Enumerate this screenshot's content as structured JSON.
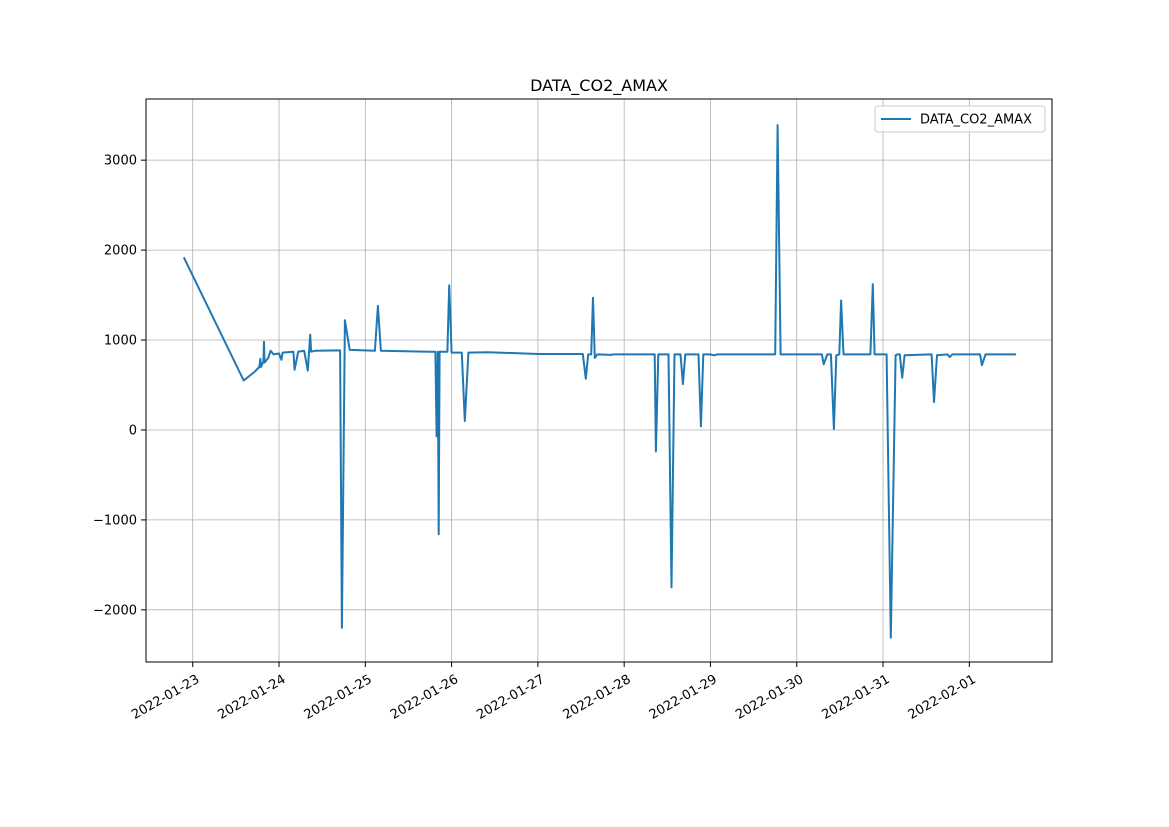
{
  "chart_data": {
    "type": "line",
    "title": "DATA_CO2_AMAX",
    "xlabel": "",
    "ylabel": "",
    "x_is_date": true,
    "xlim": [
      "2022-01-22T11:00",
      "2022-02-01T23:00"
    ],
    "ylim": [
      -2580,
      3680
    ],
    "grid": true,
    "legend_position": "upper-right",
    "x_ticks": [
      "2022-01-23",
      "2022-01-24",
      "2022-01-25",
      "2022-01-26",
      "2022-01-27",
      "2022-01-28",
      "2022-01-29",
      "2022-01-30",
      "2022-01-31",
      "2022-02-01"
    ],
    "y_ticks": [
      -2000,
      -1000,
      0,
      1000,
      2000,
      3000
    ],
    "y_tick_labels": [
      "−2000",
      "−1000",
      "0",
      "1000",
      "2000",
      "3000"
    ],
    "series": [
      {
        "name": "DATA_CO2_AMAX",
        "color": "#1f77b4",
        "points": [
          [
            "2022-01-22T21:30",
            1920
          ],
          [
            "2022-01-23T14:10",
            550
          ],
          [
            "2022-01-23T17:00",
            640
          ],
          [
            "2022-01-23T18:30",
            700
          ],
          [
            "2022-01-23T18:50",
            790
          ],
          [
            "2022-01-23T19:00",
            700
          ],
          [
            "2022-01-23T19:40",
            760
          ],
          [
            "2022-01-23T19:50",
            980
          ],
          [
            "2022-01-23T20:00",
            750
          ],
          [
            "2022-01-23T21:00",
            800
          ],
          [
            "2022-01-23T21:40",
            880
          ],
          [
            "2022-01-23T22:30",
            840
          ],
          [
            "2022-01-24T00:00",
            850
          ],
          [
            "2022-01-24T00:40",
            780
          ],
          [
            "2022-01-24T01:00",
            860
          ],
          [
            "2022-01-24T04:00",
            870
          ],
          [
            "2022-01-24T04:20",
            670
          ],
          [
            "2022-01-24T05:20",
            870
          ],
          [
            "2022-01-24T07:00",
            880
          ],
          [
            "2022-01-24T08:00",
            660
          ],
          [
            "2022-01-24T08:40",
            1060
          ],
          [
            "2022-01-24T08:55",
            870
          ],
          [
            "2022-01-24T10:00",
            880
          ],
          [
            "2022-01-24T17:00",
            885
          ],
          [
            "2022-01-24T17:30",
            -2200
          ],
          [
            "2022-01-24T18:20",
            1220
          ],
          [
            "2022-01-24T19:40",
            890
          ],
          [
            "2022-01-25T02:40",
            880
          ],
          [
            "2022-01-25T03:30",
            1380
          ],
          [
            "2022-01-25T04:20",
            880
          ],
          [
            "2022-01-25T18:00",
            870
          ],
          [
            "2022-01-25T19:30",
            870
          ],
          [
            "2022-01-25T19:50",
            -70
          ],
          [
            "2022-01-25T20:10",
            870
          ],
          [
            "2022-01-25T20:25",
            -1160
          ],
          [
            "2022-01-25T20:40",
            870
          ],
          [
            "2022-01-25T22:50",
            870
          ],
          [
            "2022-01-25T23:20",
            1610
          ],
          [
            "2022-01-26T00:00",
            860
          ],
          [
            "2022-01-26T02:50",
            860
          ],
          [
            "2022-01-26T03:40",
            100
          ],
          [
            "2022-01-26T04:40",
            860
          ],
          [
            "2022-01-26T10:00",
            865
          ],
          [
            "2022-01-27T00:00",
            845
          ],
          [
            "2022-01-27T12:30",
            845
          ],
          [
            "2022-01-27T13:20",
            570
          ],
          [
            "2022-01-27T14:00",
            840
          ],
          [
            "2022-01-27T14:50",
            840
          ],
          [
            "2022-01-27T15:20",
            1470
          ],
          [
            "2022-01-27T15:50",
            800
          ],
          [
            "2022-01-27T16:30",
            840
          ],
          [
            "2022-01-27T20:30",
            835
          ],
          [
            "2022-01-27T21:00",
            840
          ],
          [
            "2022-01-28T08:30",
            840
          ],
          [
            "2022-01-28T08:50",
            -240
          ],
          [
            "2022-01-28T09:30",
            840
          ],
          [
            "2022-01-28T12:20",
            840
          ],
          [
            "2022-01-28T13:10",
            -1750
          ],
          [
            "2022-01-28T14:00",
            840
          ],
          [
            "2022-01-28T15:40",
            840
          ],
          [
            "2022-01-28T16:20",
            510
          ],
          [
            "2022-01-28T17:00",
            840
          ],
          [
            "2022-01-28T20:40",
            840
          ],
          [
            "2022-01-28T21:20",
            40
          ],
          [
            "2022-01-28T22:00",
            840
          ],
          [
            "2022-01-29T00:00",
            840
          ],
          [
            "2022-01-29T01:00",
            830
          ],
          [
            "2022-01-29T02:00",
            840
          ],
          [
            "2022-01-29T18:00",
            840
          ],
          [
            "2022-01-29T18:40",
            3390
          ],
          [
            "2022-01-29T19:30",
            840
          ],
          [
            "2022-01-30T07:00",
            840
          ],
          [
            "2022-01-30T07:30",
            730
          ],
          [
            "2022-01-30T08:30",
            840
          ],
          [
            "2022-01-30T09:30",
            840
          ],
          [
            "2022-01-30T10:20",
            10
          ],
          [
            "2022-01-30T11:00",
            830
          ],
          [
            "2022-01-30T11:50",
            840
          ],
          [
            "2022-01-30T12:20",
            1440
          ],
          [
            "2022-01-30T13:00",
            840
          ],
          [
            "2022-01-30T20:30",
            840
          ],
          [
            "2022-01-30T21:10",
            1620
          ],
          [
            "2022-01-30T21:40",
            840
          ],
          [
            "2022-01-31T01:00",
            840
          ],
          [
            "2022-01-31T02:10",
            -2310
          ],
          [
            "2022-01-31T03:30",
            830
          ],
          [
            "2022-01-31T04:00",
            840
          ],
          [
            "2022-01-31T04:40",
            840
          ],
          [
            "2022-01-31T05:20",
            580
          ],
          [
            "2022-01-31T06:00",
            830
          ],
          [
            "2022-01-31T13:30",
            840
          ],
          [
            "2022-01-31T14:10",
            310
          ],
          [
            "2022-01-31T15:00",
            830
          ],
          [
            "2022-01-31T18:00",
            840
          ],
          [
            "2022-01-31T18:30",
            810
          ],
          [
            "2022-01-31T19:20",
            840
          ],
          [
            "2022-02-01T03:00",
            840
          ],
          [
            "2022-02-01T03:30",
            720
          ],
          [
            "2022-02-01T04:30",
            840
          ],
          [
            "2022-02-01T13:00",
            840
          ]
        ]
      }
    ]
  }
}
